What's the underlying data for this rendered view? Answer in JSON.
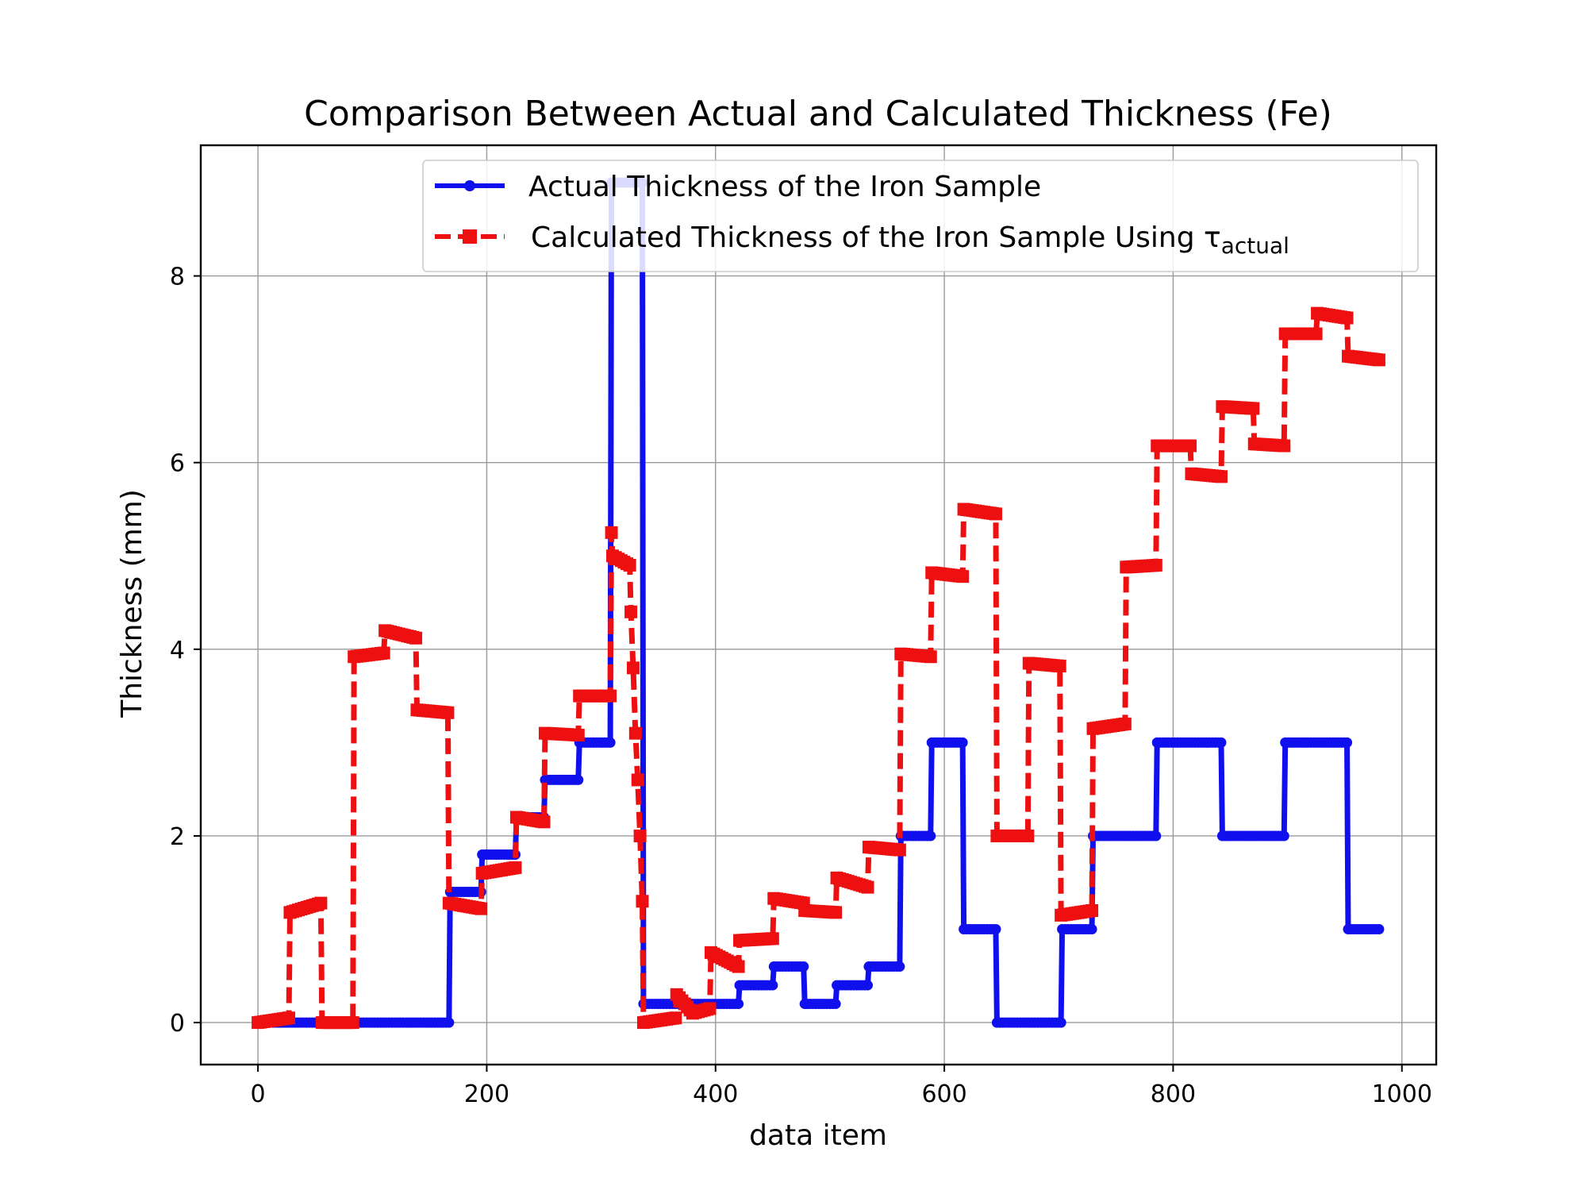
{
  "chart_data": {
    "type": "line",
    "title": "Comparison Between Actual and Calculated Thickness (Fe)",
    "xlabel": "data item",
    "ylabel": "Thickness (mm)",
    "xlim": [
      -50,
      1030
    ],
    "ylim": [
      -0.45,
      9.4
    ],
    "xticks": [
      0,
      200,
      400,
      600,
      800,
      1000
    ],
    "yticks": [
      0,
      2,
      4,
      6,
      8
    ],
    "grid": true,
    "legend_position": "top-right",
    "series": [
      {
        "name": "Actual Thickness of the Iron Sample",
        "color": "#1010ee",
        "style": "solid",
        "marker": "circle",
        "points": [
          [
            0,
            0
          ],
          [
            167,
            0
          ],
          [
            168,
            1.4
          ],
          [
            195,
            1.4
          ],
          [
            196,
            1.8
          ],
          [
            225,
            1.8
          ],
          [
            226,
            2.2
          ],
          [
            250,
            2.2
          ],
          [
            251,
            2.6
          ],
          [
            280,
            2.6
          ],
          [
            281,
            3.0
          ],
          [
            308,
            3.0
          ],
          [
            309,
            9.0
          ],
          [
            336,
            9.0
          ],
          [
            337,
            0.2
          ],
          [
            420,
            0.2
          ],
          [
            421,
            0.4
          ],
          [
            450,
            0.4
          ],
          [
            451,
            0.6
          ],
          [
            477,
            0.6
          ],
          [
            478,
            0.2
          ],
          [
            505,
            0.2
          ],
          [
            506,
            0.4
          ],
          [
            533,
            0.4
          ],
          [
            534,
            0.6
          ],
          [
            561,
            0.6
          ],
          [
            562,
            2.0
          ],
          [
            588,
            2.0
          ],
          [
            589,
            3.0
          ],
          [
            616,
            3.0
          ],
          [
            617,
            1.0
          ],
          [
            645,
            1.0
          ],
          [
            646,
            0.0
          ],
          [
            702,
            0.0
          ],
          [
            703,
            1.0
          ],
          [
            729,
            1.0
          ],
          [
            730,
            2.0
          ],
          [
            785,
            2.0
          ],
          [
            786,
            3.0
          ],
          [
            842,
            3.0
          ],
          [
            843,
            2.0
          ],
          [
            897,
            2.0
          ],
          [
            898,
            3.0
          ],
          [
            952,
            3.0
          ],
          [
            953,
            1.0
          ],
          [
            980,
            1.0
          ]
        ]
      },
      {
        "name": "Calculated Thickness of the Iron Sample Using τactual",
        "name_main": "Calculated Thickness of the Iron Sample Using τ",
        "name_sub": "actual",
        "color": "#ee1010",
        "style": "dashed",
        "marker": "square",
        "points": [
          [
            0,
            0
          ],
          [
            27,
            0.05
          ],
          [
            28,
            1.18
          ],
          [
            55,
            1.28
          ],
          [
            56,
            0
          ],
          [
            83,
            0
          ],
          [
            84,
            3.92
          ],
          [
            110,
            3.96
          ],
          [
            111,
            4.2
          ],
          [
            138,
            4.12
          ],
          [
            139,
            3.35
          ],
          [
            166,
            3.32
          ],
          [
            167,
            1.28
          ],
          [
            195,
            1.22
          ],
          [
            196,
            1.6
          ],
          [
            225,
            1.66
          ],
          [
            226,
            2.2
          ],
          [
            250,
            2.15
          ],
          [
            251,
            3.1
          ],
          [
            280,
            3.08
          ],
          [
            281,
            3.5
          ],
          [
            308,
            3.5
          ],
          [
            309,
            5.25
          ],
          [
            310,
            5.0
          ],
          [
            325,
            4.9
          ],
          [
            326,
            4.4
          ],
          [
            328,
            3.8
          ],
          [
            330,
            3.1
          ],
          [
            332,
            2.6
          ],
          [
            334,
            2.0
          ],
          [
            336,
            1.3
          ],
          [
            337,
            0.0
          ],
          [
            365,
            0.05
          ],
          [
            366,
            0.3
          ],
          [
            380,
            0.1
          ],
          [
            395,
            0.15
          ],
          [
            396,
            0.75
          ],
          [
            420,
            0.6
          ],
          [
            421,
            0.88
          ],
          [
            450,
            0.9
          ],
          [
            451,
            1.33
          ],
          [
            477,
            1.28
          ],
          [
            478,
            1.2
          ],
          [
            505,
            1.18
          ],
          [
            506,
            1.55
          ],
          [
            533,
            1.45
          ],
          [
            534,
            1.88
          ],
          [
            561,
            1.85
          ],
          [
            562,
            3.95
          ],
          [
            588,
            3.92
          ],
          [
            589,
            4.82
          ],
          [
            616,
            4.78
          ],
          [
            617,
            5.5
          ],
          [
            645,
            5.45
          ],
          [
            646,
            2.0
          ],
          [
            673,
            2.0
          ],
          [
            674,
            3.85
          ],
          [
            701,
            3.82
          ],
          [
            702,
            1.15
          ],
          [
            729,
            1.2
          ],
          [
            730,
            3.15
          ],
          [
            758,
            3.2
          ],
          [
            759,
            4.88
          ],
          [
            785,
            4.9
          ],
          [
            786,
            6.18
          ],
          [
            815,
            6.18
          ],
          [
            816,
            5.88
          ],
          [
            842,
            5.85
          ],
          [
            843,
            6.6
          ],
          [
            870,
            6.58
          ],
          [
            871,
            6.2
          ],
          [
            897,
            6.18
          ],
          [
            898,
            7.38
          ],
          [
            925,
            7.38
          ],
          [
            926,
            7.6
          ],
          [
            952,
            7.55
          ],
          [
            953,
            7.14
          ],
          [
            980,
            7.1
          ]
        ]
      }
    ]
  }
}
